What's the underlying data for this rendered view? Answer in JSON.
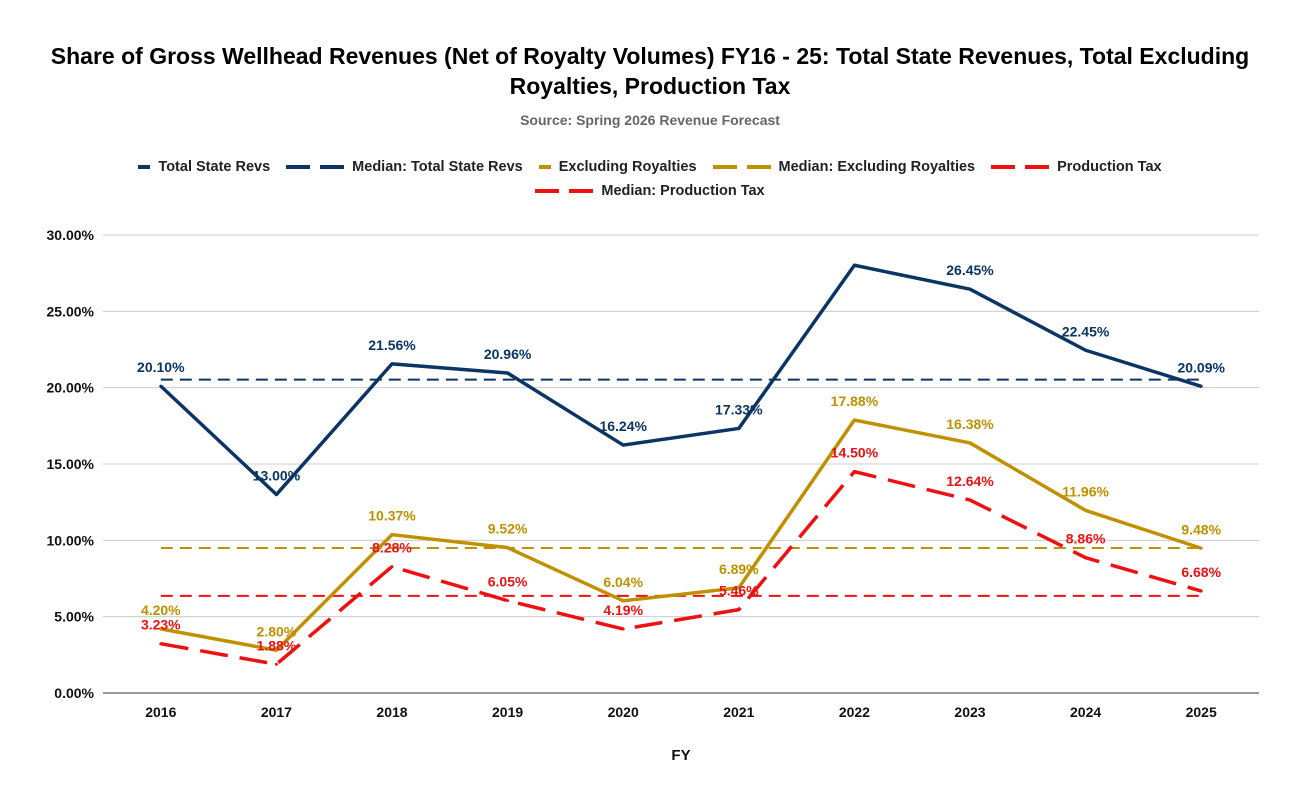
{
  "chart_data": {
    "type": "line",
    "title": "Share of Gross Wellhead Revenues (Net of Royalty Volumes) FY16 - 25: Total State Revenues, Total Excluding Royalties, Production Tax",
    "subtitle": "Source: Spring 2026 Revenue Forecast",
    "xlabel": "FY",
    "ylabel": "",
    "ylim": [
      0,
      30
    ],
    "yticks": [
      "0.00%",
      "5.00%",
      "10.00%",
      "15.00%",
      "20.00%",
      "25.00%",
      "30.00%"
    ],
    "grid": true,
    "legend_position": "top",
    "categories": [
      "2016",
      "2017",
      "2018",
      "2019",
      "2020",
      "2021",
      "2022",
      "2023",
      "2024",
      "2025"
    ],
    "series": [
      {
        "name": "Total State Revs",
        "color": "#0b3564",
        "dashed": false,
        "values": [
          20.1,
          13.0,
          21.56,
          20.96,
          16.24,
          17.33,
          28.02,
          26.45,
          22.45,
          20.09
        ],
        "labels": [
          "20.10%",
          "13.00%",
          "21.56%",
          "20.96%",
          "16.24%",
          "17.33%",
          null,
          "26.45%",
          "22.45%",
          "20.09%"
        ]
      },
      {
        "name": "Median: Total State Revs",
        "color": "#0b3564",
        "dashed": true,
        "constant": 20.53
      },
      {
        "name": "Excluding Royalties",
        "color": "#bf9000",
        "dashed": false,
        "values": [
          4.2,
          2.8,
          10.37,
          9.52,
          6.04,
          6.89,
          17.88,
          16.38,
          11.96,
          9.48
        ],
        "labels": [
          "4.20%",
          "2.80%",
          "10.37%",
          "9.52%",
          "6.04%",
          "6.89%",
          "17.88%",
          "16.38%",
          "11.96%",
          "9.48%"
        ]
      },
      {
        "name": "Median: Excluding Royalties",
        "color": "#bf9000",
        "dashed": true,
        "constant": 9.5
      },
      {
        "name": "Production Tax",
        "color": "#ee1111",
        "dashed": true,
        "values": [
          3.23,
          1.88,
          8.28,
          6.05,
          4.19,
          5.46,
          14.5,
          12.64,
          8.86,
          6.68
        ],
        "labels": [
          "3.23%",
          "1.88%",
          "8.28%",
          "6.05%",
          "4.19%",
          "5.46%",
          "14.50%",
          "12.64%",
          "8.86%",
          "6.68%"
        ]
      },
      {
        "name": "Median: Production Tax",
        "color": "#ee1111",
        "dashed": true,
        "constant": 6.365
      }
    ]
  }
}
